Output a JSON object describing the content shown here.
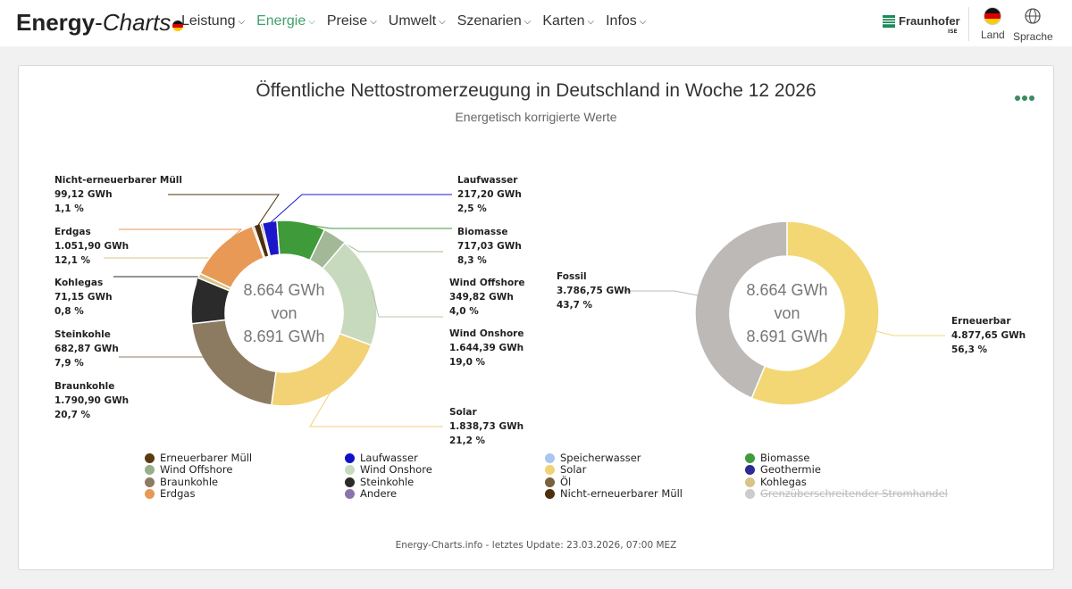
{
  "header": {
    "brand_bold": "Energy",
    "brand_sep": "-",
    "brand_italic": "Charts",
    "nav": [
      {
        "label": "Leistung",
        "active": false
      },
      {
        "label": "Energie",
        "active": true
      },
      {
        "label": "Preise",
        "active": false
      },
      {
        "label": "Umwelt",
        "active": false
      },
      {
        "label": "Szenarien",
        "active": false
      },
      {
        "label": "Karten",
        "active": false
      },
      {
        "label": "Infos",
        "active": false
      }
    ],
    "partner": "Fraunhofer",
    "partner_sub": "ISE",
    "country_label": "Land",
    "language_label": "Sprache",
    "accent_color": "#41a16a"
  },
  "chart_data": {
    "type": "pie",
    "title": "Öffentliche Nettostromerzeugung in Deutschland in Woche 12 2026",
    "subtitle": "Energetisch korrigierte Werte",
    "center": {
      "line1": "8.664 GWh",
      "line2": "von",
      "line3": "8.691 GWh"
    },
    "left_donut": {
      "slices": [
        {
          "name": "Erneuerbarer Müll",
          "value": 30,
          "value_label": "",
          "percent_label": "",
          "color": "#6b4a1e",
          "labeled": false
        },
        {
          "name": "Laufwasser",
          "value": 217.2,
          "value_label": "217,20 GWh",
          "percent_label": "2,5 %",
          "color": "#1c18c9",
          "labeled": true
        },
        {
          "name": "Biomasse",
          "value": 717.03,
          "value_label": "717,03 GWh",
          "percent_label": "8,3 %",
          "color": "#3f9a3a",
          "labeled": true
        },
        {
          "name": "Wind Offshore",
          "value": 349.82,
          "value_label": "349,82 GWh",
          "percent_label": "4,0 %",
          "color": "#a3b896",
          "labeled": true
        },
        {
          "name": "Wind Onshore",
          "value": 1644.39,
          "value_label": "1.644,39 GWh",
          "percent_label": "19,0 %",
          "color": "#c8dabd",
          "labeled": true
        },
        {
          "name": "Solar",
          "value": 1838.73,
          "value_label": "1.838,73 GWh",
          "percent_label": "21,2 %",
          "color": "#f2d274",
          "labeled": true
        },
        {
          "name": "Braunkohle",
          "value": 1790.9,
          "value_label": "1.790,90 GWh",
          "percent_label": "20,7 %",
          "color": "#8d7b61",
          "labeled": true
        },
        {
          "name": "Steinkohle",
          "value": 682.87,
          "value_label": "682,87 GWh",
          "percent_label": "7,9 %",
          "color": "#2b2b2b",
          "labeled": true
        },
        {
          "name": "Kohlegas",
          "value": 71.15,
          "value_label": "71,15 GWh",
          "percent_label": "0,8 %",
          "color": "#d8c484",
          "labeled": true
        },
        {
          "name": "Erdgas",
          "value": 1051.9,
          "value_label": "1.051,90 GWh",
          "percent_label": "12,1 %",
          "color": "#e89955",
          "labeled": true
        },
        {
          "name": "Öl",
          "value": 25,
          "value_label": "",
          "percent_label": "",
          "color": "#77613e",
          "labeled": false
        },
        {
          "name": "Nicht-erneuerbarer Müll",
          "value": 99.12,
          "value_label": "99,12 GWh",
          "percent_label": "1,1 %",
          "color": "#4e2f0c",
          "labeled": true
        }
      ]
    },
    "right_donut": {
      "slices": [
        {
          "name": "Erneuerbar",
          "value": 4877.65,
          "value_label": "4.877,65 GWh",
          "percent_label": "56,3 %",
          "color": "#f2d774"
        },
        {
          "name": "Fossil",
          "value": 3786.75,
          "value_label": "3.786,75 GWh",
          "percent_label": "43,7 %",
          "color": "#bdb9b6"
        }
      ]
    },
    "legend": [
      {
        "name": "Erneuerbarer Müll",
        "color": "#5a3a10",
        "hidden": false
      },
      {
        "name": "Laufwasser",
        "color": "#1010c8",
        "hidden": false
      },
      {
        "name": "Speicherwasser",
        "color": "#a9c6ef",
        "hidden": false
      },
      {
        "name": "Biomasse",
        "color": "#3f9a3a",
        "hidden": false
      },
      {
        "name": "Wind Offshore",
        "color": "#98ae8c",
        "hidden": false
      },
      {
        "name": "Wind Onshore",
        "color": "#c8dabd",
        "hidden": false
      },
      {
        "name": "Solar",
        "color": "#f2d274",
        "hidden": false
      },
      {
        "name": "Geothermie",
        "color": "#2c2a93",
        "hidden": false
      },
      {
        "name": "Braunkohle",
        "color": "#8d7b61",
        "hidden": false
      },
      {
        "name": "Steinkohle",
        "color": "#2b2b2b",
        "hidden": false
      },
      {
        "name": "Öl",
        "color": "#77613e",
        "hidden": false
      },
      {
        "name": "Kohlegas",
        "color": "#d8c484",
        "hidden": false
      },
      {
        "name": "Erdgas",
        "color": "#e89955",
        "hidden": false
      },
      {
        "name": "Andere",
        "color": "#8c73ad",
        "hidden": false
      },
      {
        "name": "Nicht-erneuerbarer Müll",
        "color": "#4e2f0c",
        "hidden": false
      },
      {
        "name": "Grenzüberschreitender Stromhandel",
        "color": "#cccccc",
        "hidden": true
      }
    ]
  },
  "footer": "Energy-Charts.info - letztes Update: 23.03.2026, 07:00 MEZ"
}
